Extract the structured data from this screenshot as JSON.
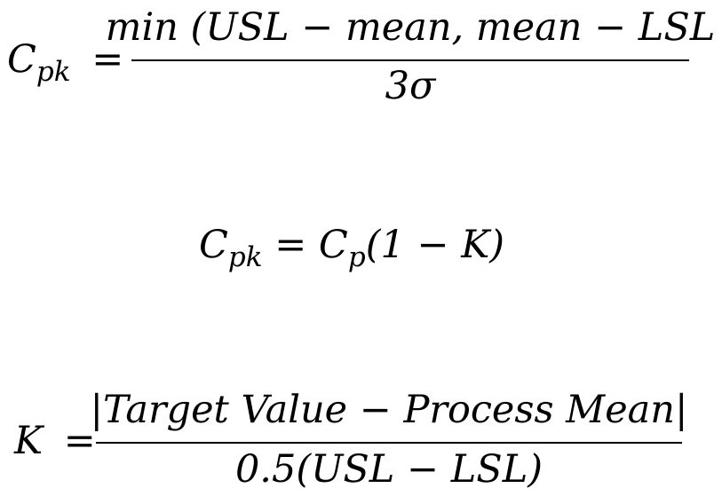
{
  "equations": {
    "eq1": {
      "lhs_var": "C",
      "lhs_sub": "pk",
      "equals": "=",
      "numerator": "min (USL − mean, mean − LSL",
      "denominator": "3σ"
    },
    "eq2": {
      "text": "C",
      "sub1": "pk",
      "eq": " = C",
      "sub2": "p",
      "tail": "(1 − K)"
    },
    "eq3": {
      "lhs_var": "K",
      "equals": "=",
      "numerator": "|Target Value − Process Mean|",
      "denominator": "0.5(USL − LSL)"
    }
  }
}
